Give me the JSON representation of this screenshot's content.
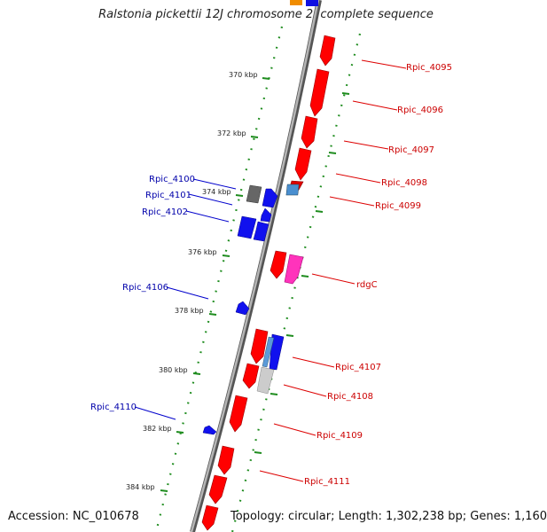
{
  "header": {
    "title": "Ralstonia pickettii 12J chromosome 2, complete sequence"
  },
  "footer": {
    "accession": "Accession: NC_010678",
    "topology": "Topology: circular; Length: 1,302,238 bp; Genes: 1,160"
  },
  "colors": {
    "forward_label": "#cc0000",
    "reverse_label": "#0000aa",
    "tick": "#1e8c1e",
    "backbone": "#888888"
  },
  "kbp_marks": [
    {
      "label": "370 kbp"
    },
    {
      "label": "372 kbp"
    },
    {
      "label": "374 kbp"
    },
    {
      "label": "376 kbp"
    },
    {
      "label": "378 kbp"
    },
    {
      "label": "380 kbp"
    },
    {
      "label": "382 kbp"
    },
    {
      "label": "384 kbp"
    }
  ],
  "gene_labels_right": [
    {
      "label": "Rpic_4095"
    },
    {
      "label": "Rpic_4096"
    },
    {
      "label": "Rpic_4097"
    },
    {
      "label": "Rpic_4098"
    },
    {
      "label": "Rpic_4099"
    },
    {
      "label": "rdgC"
    },
    {
      "label": "Rpic_4107"
    },
    {
      "label": "Rpic_4108"
    },
    {
      "label": "Rpic_4109"
    },
    {
      "label": "Rpic_4111"
    }
  ],
  "gene_labels_left": [
    {
      "label": "Rpic_4100"
    },
    {
      "label": "Rpic_4101"
    },
    {
      "label": "Rpic_4102"
    },
    {
      "label": "Rpic_4106"
    },
    {
      "label": "Rpic_4110"
    }
  ]
}
